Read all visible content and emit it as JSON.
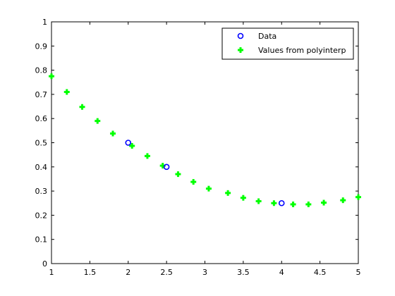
{
  "chart_data": {
    "type": "scatter",
    "xlim": [
      1,
      5
    ],
    "ylim": [
      0,
      1
    ],
    "xticks": [
      1,
      1.5,
      2,
      2.5,
      3,
      3.5,
      4,
      4.5,
      5
    ],
    "yticks": [
      0,
      0.1,
      0.2,
      0.3,
      0.4,
      0.5,
      0.6,
      0.7,
      0.8,
      0.9,
      1
    ],
    "grid": false,
    "legend_position": "top-right",
    "series": [
      {
        "name": "Data",
        "marker": "open-circle",
        "color": "#0000ff",
        "x": [
          2,
          2.5,
          4
        ],
        "y": [
          0.5,
          0.4,
          0.25
        ]
      },
      {
        "name": "Values from polyinterp",
        "marker": "plus",
        "color": "#00ff00",
        "x": [
          1,
          1.2,
          1.4,
          1.6,
          1.8,
          2.05,
          2.25,
          2.45,
          2.65,
          2.85,
          3.05,
          3.3,
          3.5,
          3.7,
          3.9,
          4.15,
          4.35,
          4.55,
          4.8,
          5.0
        ],
        "y": [
          0.775,
          0.71,
          0.648,
          0.59,
          0.538,
          0.487,
          0.445,
          0.405,
          0.37,
          0.338,
          0.31,
          0.292,
          0.272,
          0.258,
          0.25,
          0.245,
          0.245,
          0.252,
          0.262,
          0.275
        ]
      }
    ]
  }
}
